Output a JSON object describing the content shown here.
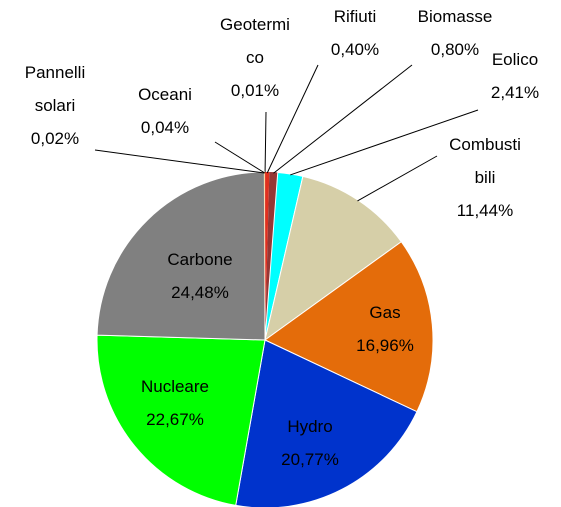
{
  "chart_data": {
    "type": "pie",
    "categories": [
      "Geotermi\nco",
      "Rifiuti",
      "Biomasse",
      "Eolico",
      "Combusti\nbili",
      "Gas",
      "Hydro",
      "Nucleare",
      "Carbone",
      "Pannelli\nsolari",
      "Oceani"
    ],
    "values": [
      0.01,
      0.4,
      0.8,
      2.41,
      11.44,
      16.96,
      20.77,
      22.67,
      24.48,
      0.02,
      0.04
    ],
    "value_labels": [
      "0,01%",
      "0,40%",
      "0,80%",
      "2,41%",
      "11,44%",
      "16,96%",
      "20,77%",
      "22,67%",
      "24,48%",
      "0,02%",
      "0,04%"
    ],
    "colors": [
      "#c0504d",
      "#e0301e",
      "#953735",
      "#00ffff",
      "#d6cfa8",
      "#e46c0a",
      "#0033cc",
      "#00ff00",
      "#808080",
      "#ffff66",
      "#f79646"
    ]
  }
}
